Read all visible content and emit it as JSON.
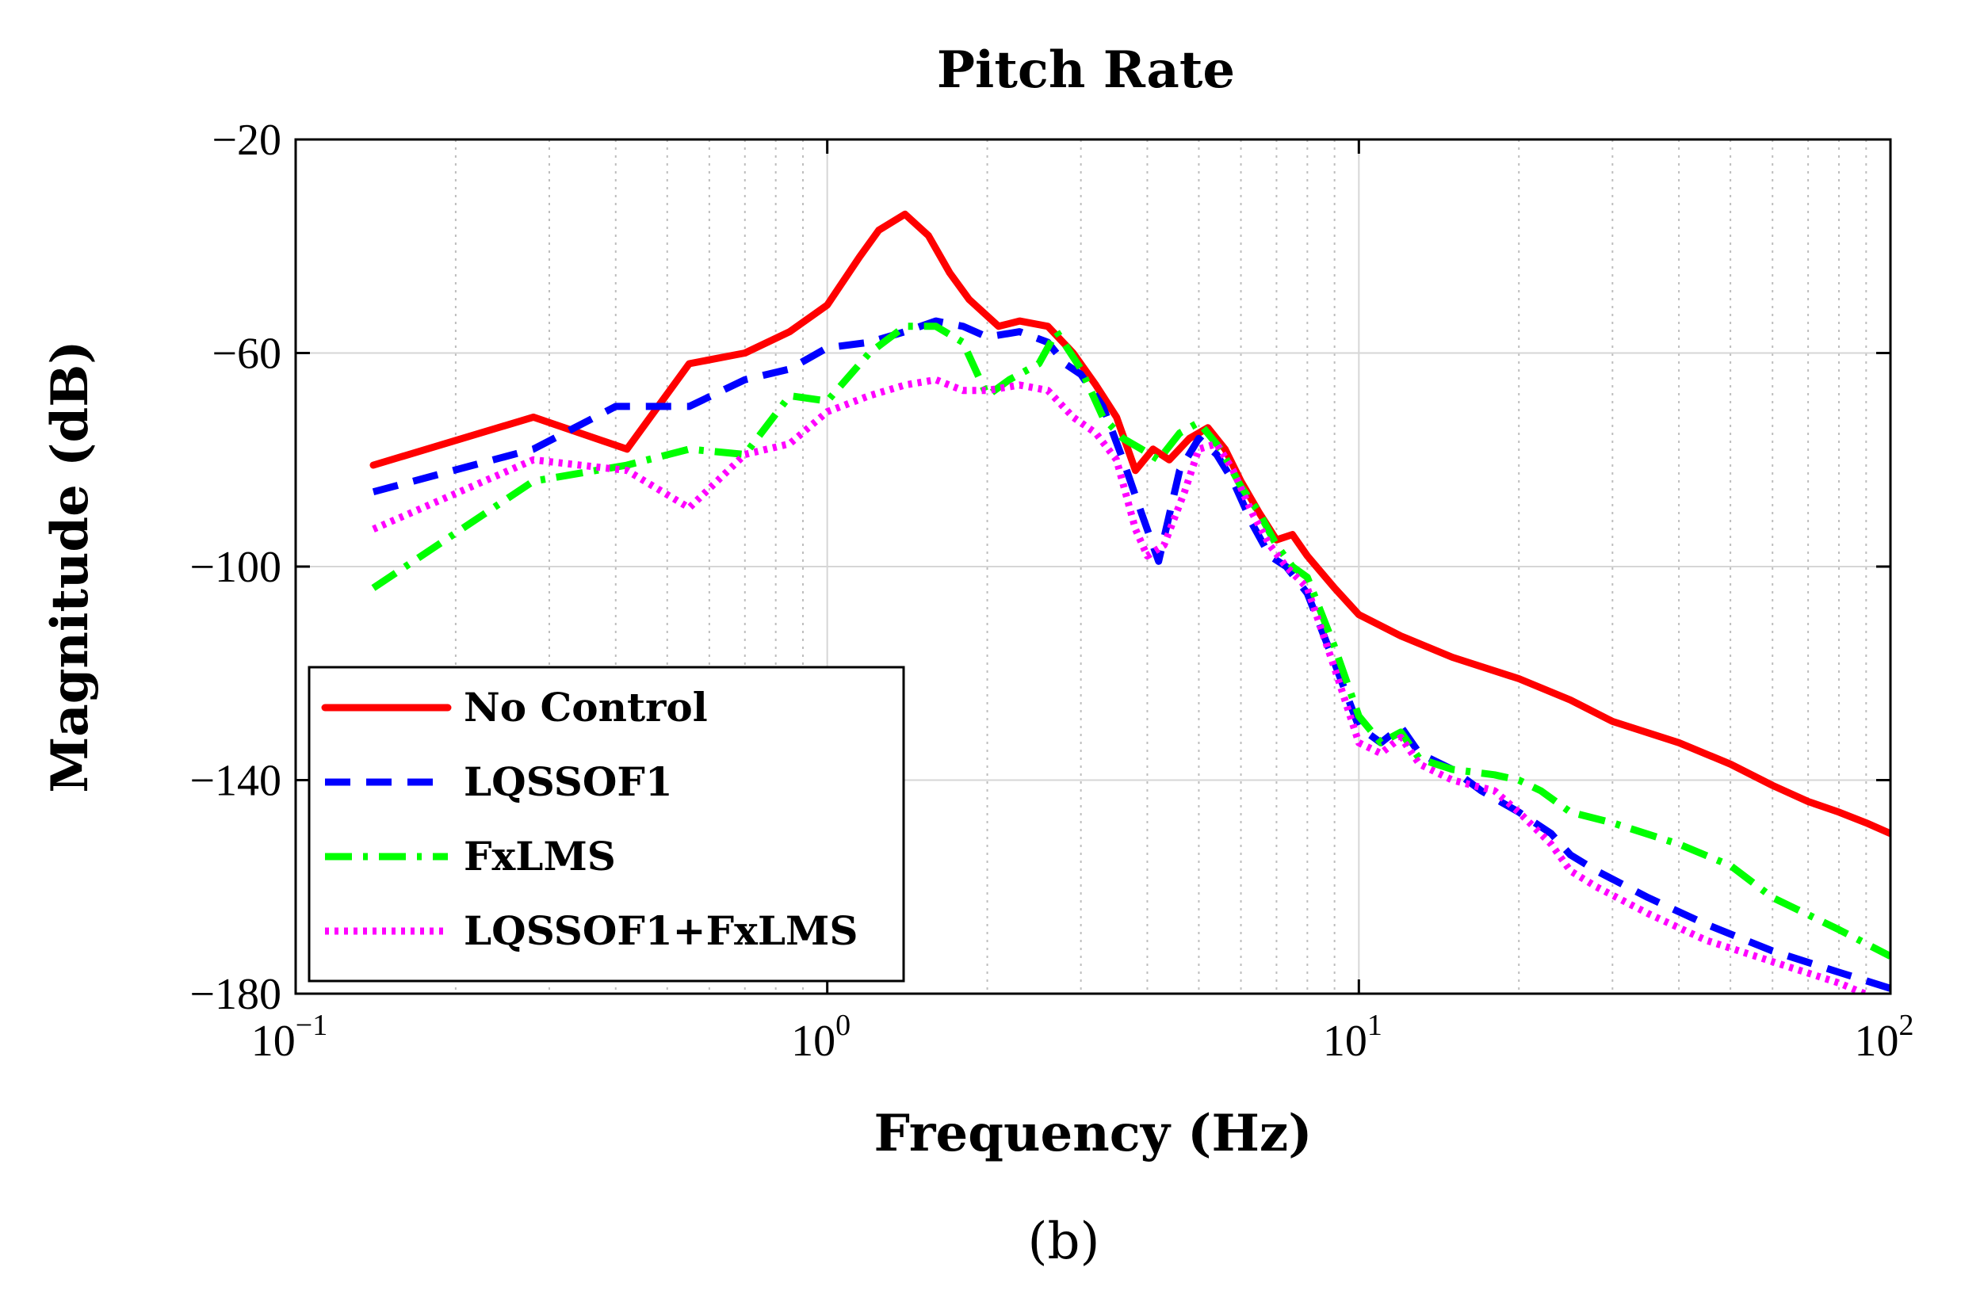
{
  "chart_data": {
    "type": "line",
    "title": "Pitch Rate",
    "xlabel": "Frequency (Hz)",
    "ylabel": "Magnitude (dB)",
    "xscale": "log",
    "xlim": [
      0.1,
      100
    ],
    "ylim": [
      -180,
      -20
    ],
    "grid": true,
    "legend_position": "lower-left",
    "caption": "(b)",
    "x_ticks": [
      {
        "base": "10",
        "exp": "−1",
        "value": 0.1
      },
      {
        "base": "10",
        "exp": "0",
        "value": 1
      },
      {
        "base": "10",
        "exp": "1",
        "value": 10
      },
      {
        "base": "10",
        "exp": "2",
        "value": 100
      }
    ],
    "y_ticks": [
      {
        "label": "−20",
        "value": -20
      },
      {
        "label": "−60",
        "value": -60
      },
      {
        "label": "−100",
        "value": -100
      },
      {
        "label": "−140",
        "value": -140
      },
      {
        "label": "−180",
        "value": -180
      }
    ],
    "series": [
      {
        "name": "No Control",
        "color": "#ff0000",
        "style": "solid",
        "x": [
          0.14,
          0.28,
          0.42,
          0.55,
          0.7,
          0.85,
          1.0,
          1.15,
          1.25,
          1.4,
          1.55,
          1.7,
          1.85,
          2.1,
          2.3,
          2.6,
          2.9,
          3.2,
          3.5,
          3.8,
          4.1,
          4.4,
          4.8,
          5.2,
          5.6,
          6.0,
          6.5,
          7.0,
          7.5,
          8.0,
          9.0,
          10,
          12,
          15,
          20,
          25,
          30,
          40,
          50,
          60,
          70,
          80,
          90,
          100
        ],
        "y": [
          -81,
          -72,
          -78,
          -62,
          -60,
          -56,
          -51,
          -42,
          -37,
          -34,
          -38,
          -45,
          -50,
          -55,
          -54,
          -55,
          -60,
          -66,
          -72,
          -82,
          -78,
          -80,
          -76,
          -74,
          -78,
          -84,
          -90,
          -95,
          -94,
          -98,
          -104,
          -109,
          -113,
          -117,
          -121,
          -125,
          -129,
          -133,
          -137,
          -141,
          -144,
          -146,
          -148,
          -150
        ]
      },
      {
        "name": "LQSSOF1",
        "color": "#0000ff",
        "style": "dashed",
        "x": [
          0.14,
          0.28,
          0.4,
          0.55,
          0.7,
          0.85,
          1.0,
          1.2,
          1.4,
          1.6,
          1.8,
          2.0,
          2.3,
          2.6,
          2.8,
          3.0,
          3.3,
          3.6,
          3.9,
          4.2,
          4.6,
          5.0,
          5.4,
          5.8,
          6.3,
          6.8,
          7.3,
          8.0,
          9.0,
          10,
          11,
          12,
          13,
          15,
          17,
          20,
          23,
          25,
          28,
          35,
          45,
          60,
          80,
          100
        ],
        "y": [
          -86,
          -78,
          -70,
          -70,
          -65,
          -63,
          -59,
          -58,
          -56,
          -54,
          -55,
          -57,
          -56,
          -58,
          -62,
          -64,
          -70,
          -80,
          -90,
          -99,
          -82,
          -76,
          -79,
          -84,
          -92,
          -98,
          -100,
          -105,
          -118,
          -130,
          -133,
          -130,
          -135,
          -138,
          -142,
          -146,
          -150,
          -154,
          -157,
          -162,
          -167,
          -172,
          -176,
          -179
        ]
      },
      {
        "name": "FxLMS",
        "color": "#00ff00",
        "style": "dashdot",
        "x": [
          0.14,
          0.28,
          0.42,
          0.55,
          0.7,
          0.85,
          1.0,
          1.2,
          1.4,
          1.6,
          1.8,
          2.0,
          2.2,
          2.5,
          2.7,
          3.0,
          3.3,
          3.6,
          3.9,
          4.2,
          4.6,
          5.0,
          5.5,
          6.0,
          6.5,
          7.0,
          7.5,
          8.0,
          9.0,
          10,
          11,
          12,
          13,
          15,
          18,
          20,
          22,
          25,
          30,
          40,
          50,
          60,
          80,
          100
        ],
        "y": [
          -104,
          -84,
          -81,
          -78,
          -79,
          -68,
          -69,
          -60,
          -55,
          -55,
          -58,
          -68,
          -65,
          -62,
          -56,
          -63,
          -72,
          -76,
          -78,
          -80,
          -75,
          -73,
          -78,
          -85,
          -90,
          -96,
          -100,
          -102,
          -115,
          -128,
          -133,
          -131,
          -136,
          -138,
          -139,
          -140,
          -142,
          -146,
          -148,
          -152,
          -156,
          -162,
          -168,
          -173
        ]
      },
      {
        "name": "LQSSOF1+FxLMS",
        "color": "#ff00ff",
        "style": "dotted",
        "x": [
          0.14,
          0.28,
          0.42,
          0.55,
          0.7,
          0.85,
          1.0,
          1.2,
          1.4,
          1.6,
          1.8,
          2.0,
          2.3,
          2.6,
          2.9,
          3.2,
          3.5,
          3.8,
          4.0,
          4.3,
          4.7,
          5.0,
          5.4,
          5.8,
          6.3,
          6.8,
          7.3,
          8.0,
          9.0,
          10,
          11,
          12,
          13,
          15,
          18,
          20,
          23,
          25,
          28,
          35,
          45,
          60,
          80,
          100
        ],
        "y": [
          -93,
          -80,
          -82,
          -89,
          -79,
          -77,
          -71,
          -68,
          -66,
          -65,
          -67,
          -67,
          -66,
          -67,
          -72,
          -75,
          -80,
          -93,
          -98,
          -96,
          -86,
          -78,
          -77,
          -82,
          -90,
          -96,
          -100,
          -104,
          -119,
          -133,
          -135,
          -132,
          -137,
          -140,
          -142,
          -146,
          -152,
          -157,
          -160,
          -165,
          -170,
          -174,
          -178,
          -182
        ]
      }
    ]
  }
}
